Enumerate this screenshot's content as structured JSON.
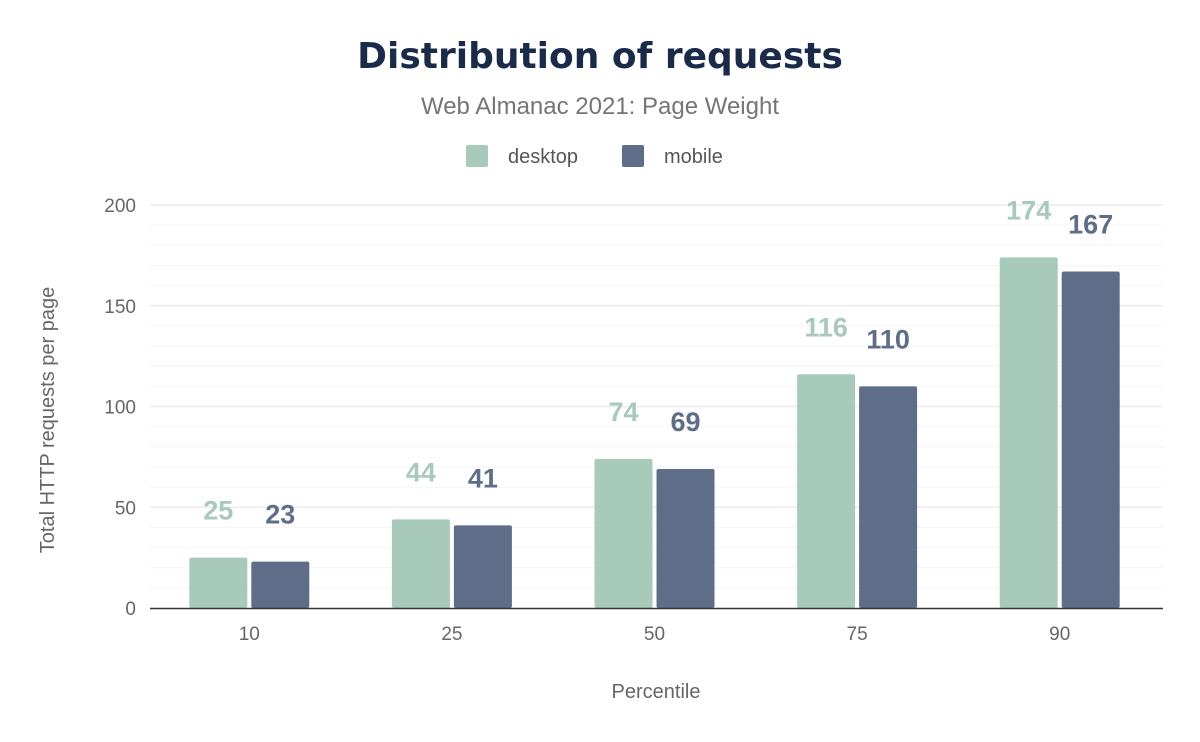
{
  "chart_data": {
    "type": "bar",
    "title": "Distribution of requests",
    "subtitle": "Web Almanac 2021: Page Weight",
    "xlabel": "Percentile",
    "ylabel": "Total HTTP requests per page",
    "categories": [
      "10",
      "25",
      "50",
      "75",
      "90"
    ],
    "series": [
      {
        "name": "desktop",
        "values": [
          25,
          44,
          74,
          116,
          174
        ],
        "color": "#a8cabb"
      },
      {
        "name": "mobile",
        "values": [
          23,
          41,
          69,
          110,
          167
        ],
        "color": "#5f6e88"
      }
    ],
    "ylim": [
      0,
      200
    ],
    "yticks": [
      0,
      50,
      100,
      150,
      200
    ],
    "minor_grid_step": 10,
    "grid": true,
    "legend_position": "top-center",
    "data_labels": true
  }
}
